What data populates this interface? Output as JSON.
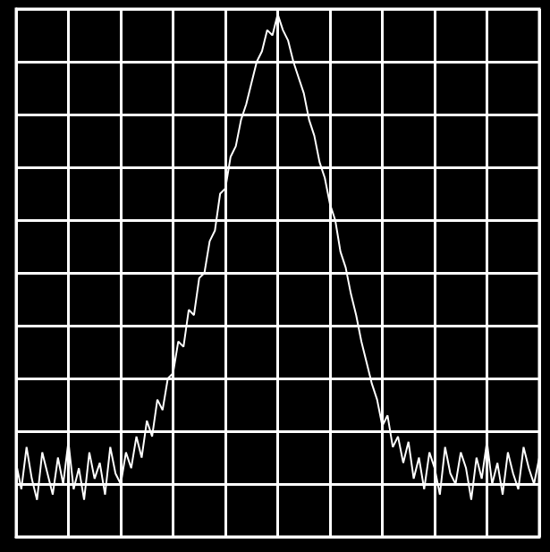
{
  "chart_data": {
    "type": "line",
    "color": "#ffffff",
    "grid": true,
    "tick_labels": false,
    "xlim": [
      0,
      10
    ],
    "ylim": [
      0,
      10
    ],
    "xticks": [
      0,
      1,
      2,
      3,
      4,
      5,
      6,
      7,
      8,
      9,
      10
    ],
    "yticks": [
      0,
      1,
      2,
      3,
      4,
      5,
      6,
      7,
      8,
      9,
      10
    ],
    "x": [
      0.0,
      0.1,
      0.2,
      0.3,
      0.4,
      0.5,
      0.6,
      0.7,
      0.8,
      0.9,
      1.0,
      1.1,
      1.2,
      1.3,
      1.4,
      1.5,
      1.6,
      1.7,
      1.8,
      1.9,
      2.0,
      2.1,
      2.2,
      2.3,
      2.4,
      2.5,
      2.6,
      2.7,
      2.8,
      2.9,
      3.0,
      3.1,
      3.2,
      3.3,
      3.4,
      3.5,
      3.6,
      3.7,
      3.8,
      3.9,
      4.0,
      4.1,
      4.2,
      4.3,
      4.4,
      4.5,
      4.6,
      4.7,
      4.8,
      4.9,
      5.0,
      5.1,
      5.2,
      5.3,
      5.4,
      5.5,
      5.6,
      5.7,
      5.8,
      5.9,
      6.0,
      6.1,
      6.2,
      6.3,
      6.4,
      6.5,
      6.6,
      6.7,
      6.8,
      6.9,
      7.0,
      7.1,
      7.2,
      7.3,
      7.4,
      7.5,
      7.6,
      7.7,
      7.8,
      7.9,
      8.0,
      8.1,
      8.2,
      8.3,
      8.4,
      8.5,
      8.6,
      8.7,
      8.8,
      8.9,
      9.0,
      9.1,
      9.2,
      9.3,
      9.4,
      9.5,
      9.6,
      9.7,
      9.8,
      9.9,
      10.0
    ],
    "values": [
      1.4,
      0.9,
      1.7,
      1.1,
      0.7,
      1.6,
      1.2,
      0.8,
      1.5,
      1.0,
      1.8,
      0.9,
      1.3,
      0.7,
      1.6,
      1.1,
      1.4,
      0.8,
      1.7,
      1.2,
      1.0,
      1.6,
      1.3,
      1.9,
      1.5,
      2.2,
      1.9,
      2.6,
      2.4,
      3.0,
      3.1,
      3.7,
      3.6,
      4.3,
      4.2,
      4.9,
      5.0,
      5.6,
      5.8,
      6.5,
      6.6,
      7.2,
      7.4,
      7.9,
      8.2,
      8.6,
      9.0,
      9.2,
      9.6,
      9.5,
      9.9,
      9.6,
      9.4,
      9.0,
      8.7,
      8.4,
      7.9,
      7.6,
      7.1,
      6.8,
      6.3,
      6.0,
      5.4,
      5.1,
      4.6,
      4.2,
      3.7,
      3.3,
      2.9,
      2.6,
      2.1,
      2.3,
      1.7,
      1.9,
      1.4,
      1.8,
      1.1,
      1.5,
      0.9,
      1.6,
      1.3,
      0.8,
      1.7,
      1.2,
      1.0,
      1.6,
      1.3,
      0.7,
      1.5,
      1.1,
      1.8,
      1.0,
      1.4,
      0.8,
      1.6,
      1.2,
      0.9,
      1.7,
      1.3,
      1.0,
      1.5
    ]
  }
}
